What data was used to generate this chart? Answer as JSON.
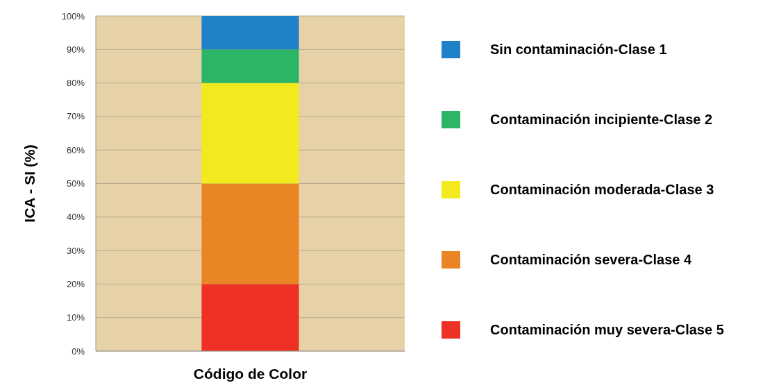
{
  "chart_data": {
    "type": "bar",
    "stacked": true,
    "xlabel": "Código de Color",
    "ylabel": "ICA - SI (%)",
    "categories": [
      null
    ],
    "series": [
      {
        "name": "Contaminación muy severa-Clase 5",
        "color": "#ee3124",
        "values": [
          20
        ]
      },
      {
        "name": "Contaminación severa-Clase 4",
        "color": "#e98525",
        "values": [
          30
        ]
      },
      {
        "name": "Contaminación moderada-Clase 3",
        "color": "#f2ea1e",
        "values": [
          30
        ]
      },
      {
        "name": "Contaminación incipiente-Clase 2",
        "color": "#2bb564",
        "values": [
          10
        ]
      },
      {
        "name": "Sin contaminación-Clase 1",
        "color": "#1f82c8",
        "values": [
          10
        ]
      }
    ],
    "ylim": [
      0,
      100
    ],
    "yticks": [
      {
        "value": 0,
        "label": "0%"
      },
      {
        "value": 10,
        "label": "10%"
      },
      {
        "value": 20,
        "label": "20%"
      },
      {
        "value": 30,
        "label": "30%"
      },
      {
        "value": 40,
        "label": "40%"
      },
      {
        "value": 50,
        "label": "50%"
      },
      {
        "value": 60,
        "label": "60%"
      },
      {
        "value": 70,
        "label": "70%"
      },
      {
        "value": 80,
        "label": "80%"
      },
      {
        "value": 90,
        "label": "90%"
      },
      {
        "value": 100,
        "label": "100%"
      }
    ],
    "grid": "y",
    "legend": "right"
  }
}
